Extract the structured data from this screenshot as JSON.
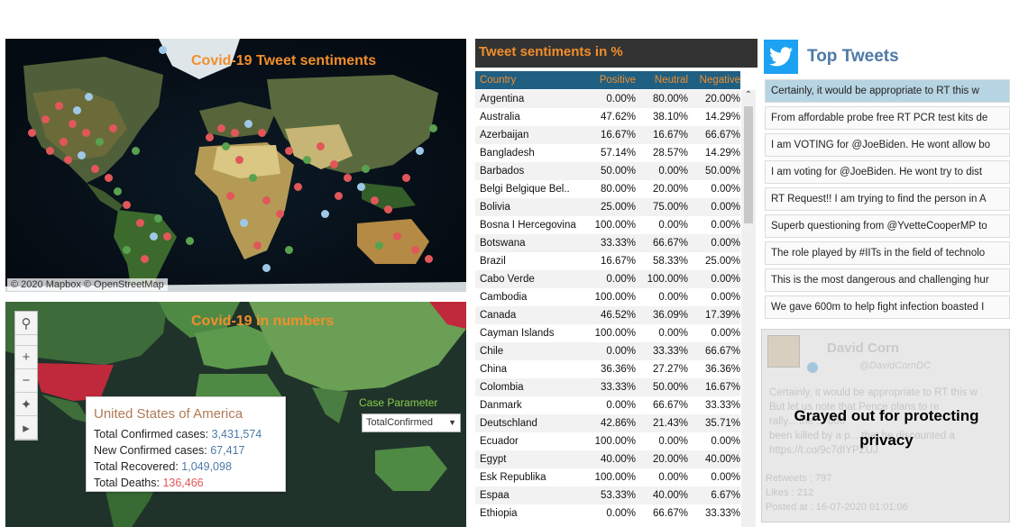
{
  "map_sentiments": {
    "title": "Covid-19 Tweet sentiments",
    "credit": "© 2020 Mapbox © OpenStreetMap",
    "legend_colors": {
      "negative": "#e15759",
      "positive": "#59a14f",
      "neutral": "#9fc8e8"
    }
  },
  "map_numbers": {
    "title": "Covid-19 in numbers",
    "case_parameter_label": "Case Parameter",
    "case_parameter_value": "TotalConfirmed",
    "tooltip": {
      "country": "United States of America",
      "confirmed_label": "Total Confirmed cases:",
      "confirmed_value": "3,431,574",
      "new_label": "New Confirmed cases:",
      "new_value": "67,417",
      "recovered_label": "Total Recovered:",
      "recovered_value": "1,049,098",
      "deaths_label": "Total Deaths:",
      "deaths_value": "136,466"
    }
  },
  "sentiment_table": {
    "title": "Tweet sentiments in %",
    "headers": {
      "country": "Country",
      "positive": "Positive",
      "neutral": "Neutral",
      "negative": "Negative"
    },
    "rows": [
      {
        "country": "Argentina",
        "positive": "0.00%",
        "neutral": "80.00%",
        "negative": "20.00%"
      },
      {
        "country": "Australia",
        "positive": "47.62%",
        "neutral": "38.10%",
        "negative": "14.29%"
      },
      {
        "country": "Azerbaijan",
        "positive": "16.67%",
        "neutral": "16.67%",
        "negative": "66.67%"
      },
      {
        "country": "Bangladesh",
        "positive": "57.14%",
        "neutral": "28.57%",
        "negative": "14.29%"
      },
      {
        "country": "Barbados",
        "positive": "50.00%",
        "neutral": "0.00%",
        "negative": "50.00%"
      },
      {
        "country": "Belgi Belgique Bel..",
        "positive": "80.00%",
        "neutral": "20.00%",
        "negative": "0.00%"
      },
      {
        "country": "Bolivia",
        "positive": "25.00%",
        "neutral": "75.00%",
        "negative": "0.00%"
      },
      {
        "country": "Bosna I Hercegovina",
        "positive": "100.00%",
        "neutral": "0.00%",
        "negative": "0.00%"
      },
      {
        "country": "Botswana",
        "positive": "33.33%",
        "neutral": "66.67%",
        "negative": "0.00%"
      },
      {
        "country": "Brazil",
        "positive": "16.67%",
        "neutral": "58.33%",
        "negative": "25.00%"
      },
      {
        "country": "Cabo Verde",
        "positive": "0.00%",
        "neutral": "100.00%",
        "negative": "0.00%"
      },
      {
        "country": "Cambodia",
        "positive": "100.00%",
        "neutral": "0.00%",
        "negative": "0.00%"
      },
      {
        "country": "Canada",
        "positive": "46.52%",
        "neutral": "36.09%",
        "negative": "17.39%"
      },
      {
        "country": "Cayman Islands",
        "positive": "100.00%",
        "neutral": "0.00%",
        "negative": "0.00%"
      },
      {
        "country": "Chile",
        "positive": "0.00%",
        "neutral": "33.33%",
        "negative": "66.67%"
      },
      {
        "country": "China",
        "positive": "36.36%",
        "neutral": "27.27%",
        "negative": "36.36%"
      },
      {
        "country": "Colombia",
        "positive": "33.33%",
        "neutral": "50.00%",
        "negative": "16.67%"
      },
      {
        "country": "Danmark",
        "positive": "0.00%",
        "neutral": "66.67%",
        "negative": "33.33%"
      },
      {
        "country": "Deutschland",
        "positive": "42.86%",
        "neutral": "21.43%",
        "negative": "35.71%"
      },
      {
        "country": "Ecuador",
        "positive": "100.00%",
        "neutral": "0.00%",
        "negative": "0.00%"
      },
      {
        "country": "Egypt",
        "positive": "40.00%",
        "neutral": "20.00%",
        "negative": "40.00%"
      },
      {
        "country": "Esk Republika",
        "positive": "100.00%",
        "neutral": "0.00%",
        "negative": "0.00%"
      },
      {
        "country": "Espaa",
        "positive": "53.33%",
        "neutral": "40.00%",
        "negative": "6.67%"
      },
      {
        "country": "Ethiopia",
        "positive": "0.00%",
        "neutral": "66.67%",
        "negative": "33.33%"
      }
    ]
  },
  "top_tweets": {
    "title": "Top Tweets",
    "items": [
      "Certainly, it would be appropriate to RT this w",
      "From affordable probe free RT PCR test kits de",
      "I am VOTING for @JoeBiden.  He wont allow bo",
      "I am voting for @JoeBiden.  He wont try to dist",
      "RT Request!! I am trying to find the person in A",
      "Superb questioning from @YvetteCooperMP to",
      "The role played by #IITs in the field of technolo",
      "This is the most dangerous and challenging hur",
      "We gave 600m to help fight infection boasted I"
    ],
    "card": {
      "name": "David Corn",
      "handle": "@DavidCornDC",
      "text_lines": [
        "Certainly, it would be appropriate to RT this w",
        "But let us note that Pence plans to re",
        "rally... the ... 000",
        "been killed by a p... that he discounted a",
        "https://t.co/9c7dIYPZUJ"
      ],
      "retweets": "Retweets : 797",
      "likes": "Likes : 212",
      "posted": "Posted at : 16-07-2020 01:01:06",
      "privacy_note_1": "Grayed out for protecting",
      "privacy_note_2": "privacy"
    }
  }
}
